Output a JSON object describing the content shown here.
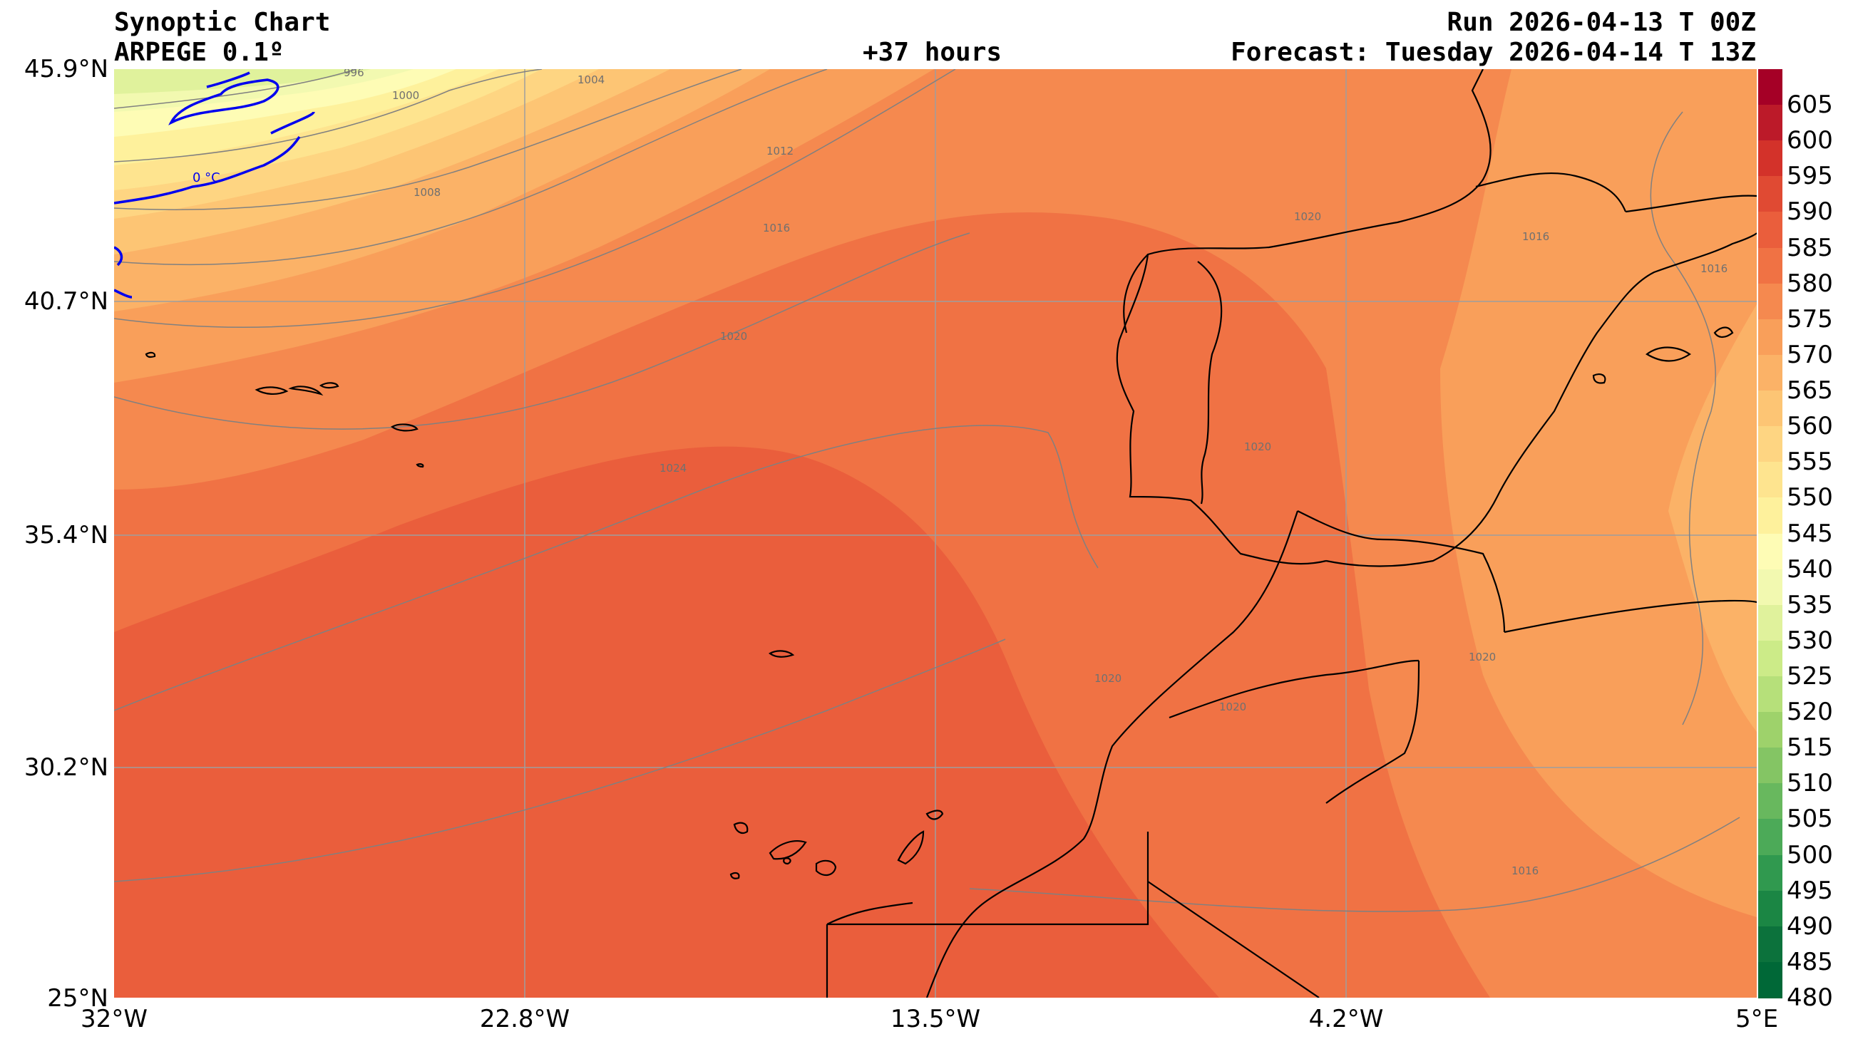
{
  "header": {
    "title": "Synoptic Chart",
    "model": "ARPEGE 0.1º",
    "offset": "+37 hours",
    "run": "Run 2026-04-13 T 00Z",
    "forecast": "Forecast: Tuesday 2026-04-14 T 13Z"
  },
  "axes": {
    "lat_labels": [
      "45.9°N",
      "40.7°N",
      "35.4°N",
      "30.2°N",
      "25°N"
    ],
    "lon_labels": [
      "32°W",
      "22.8°W",
      "13.5°W",
      "4.2°W",
      "5°E"
    ]
  },
  "isobar_labels": [
    "996",
    "1000",
    "1004",
    "1008",
    "1012",
    "1016",
    "1020",
    "1024",
    "1020",
    "1020",
    "1016",
    "1020",
    "1020",
    "1020",
    "1016",
    "1016"
  ],
  "isotherm_label": "0 °C",
  "colorbar": {
    "labels": [
      "605",
      "600",
      "595",
      "590",
      "585",
      "580",
      "575",
      "570",
      "565",
      "560",
      "555",
      "550",
      "545",
      "540",
      "535",
      "530",
      "525",
      "520",
      "515",
      "510",
      "505",
      "500",
      "495",
      "490",
      "485",
      "480"
    ],
    "colors": [
      "#a50026",
      "#bc1a29",
      "#d3322a",
      "#e04a33",
      "#ea5e3c",
      "#f07244",
      "#f5894f",
      "#f99f5a",
      "#fbb267",
      "#fdc574",
      "#fed582",
      "#fee48f",
      "#fef19c",
      "#fefcb5",
      "#f2f9b0",
      "#e0f29c",
      "#cceb88",
      "#b6e07a",
      "#9ed26b",
      "#84c564",
      "#68b85e",
      "#4caa58",
      "#30994f",
      "#1b8644",
      "#0c723c",
      "#006837"
    ]
  }
}
